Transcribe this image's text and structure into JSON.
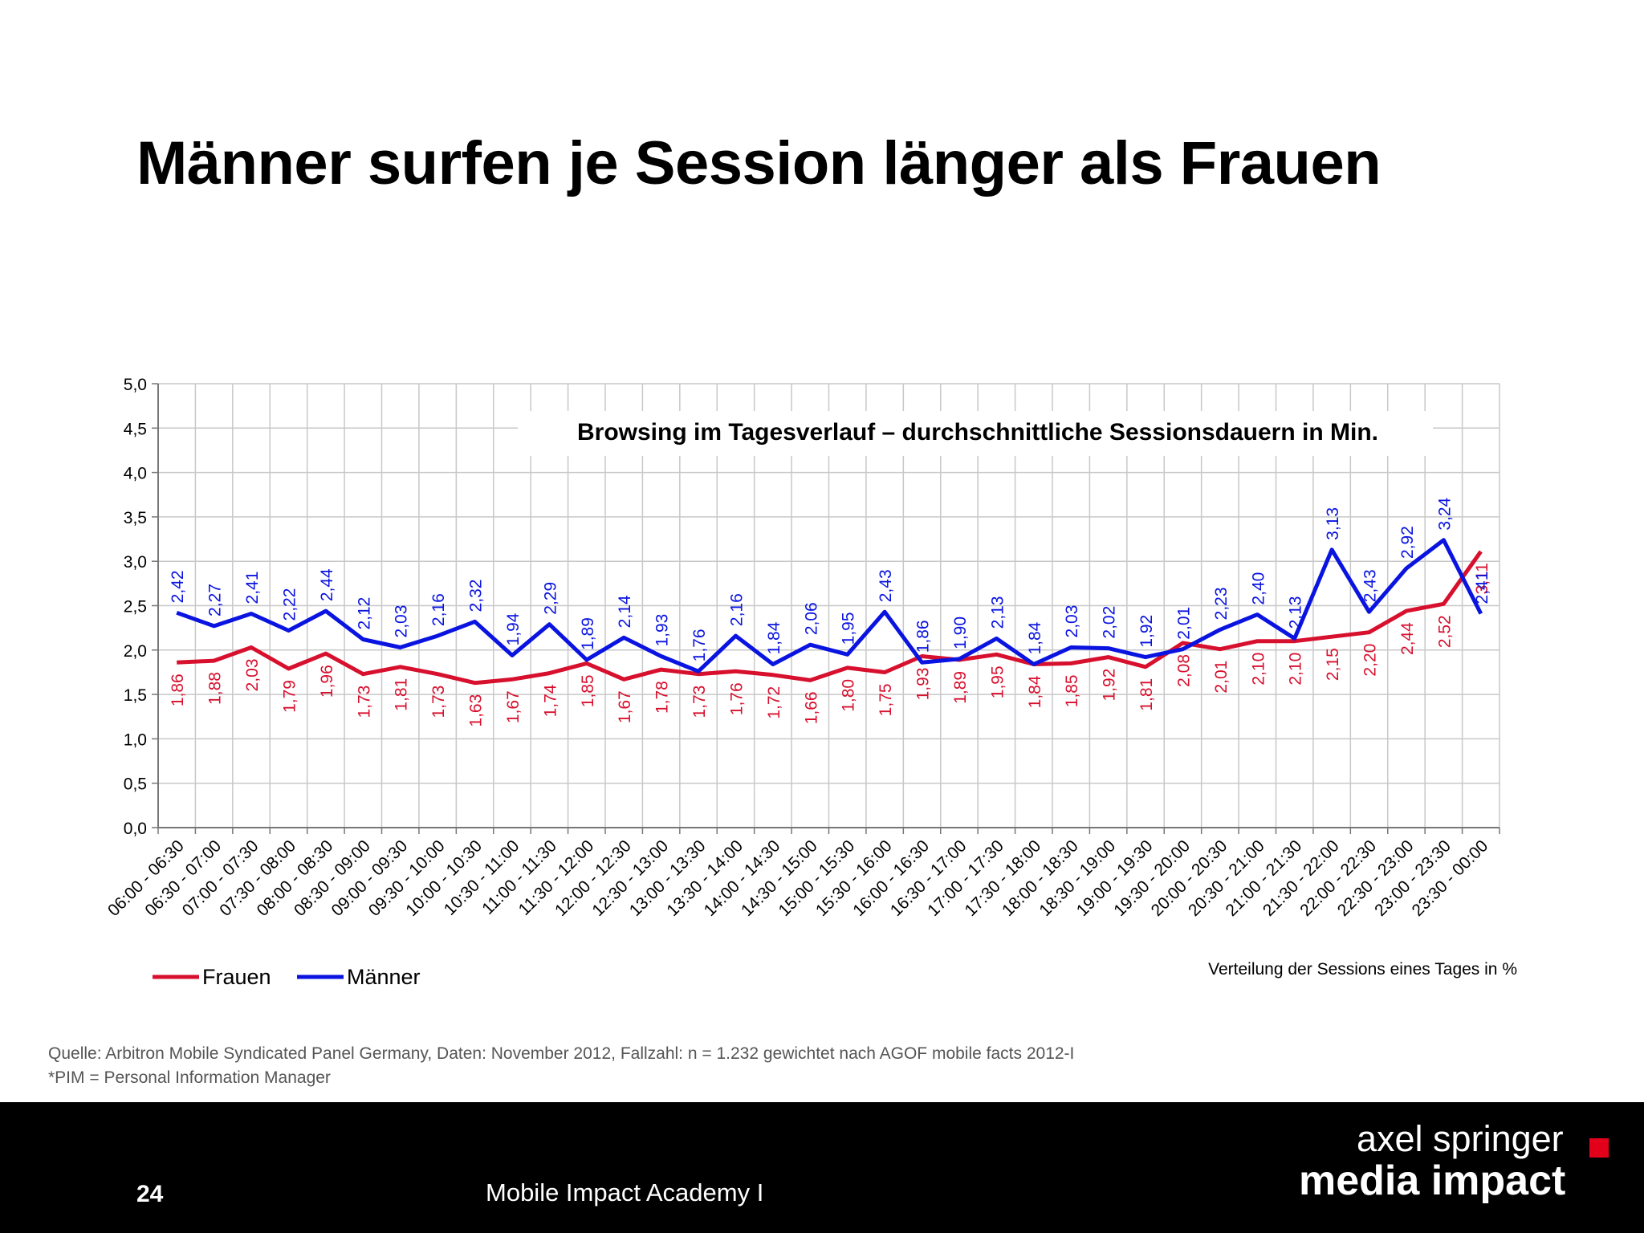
{
  "slide": {
    "title": "Männer surfen je Session länger als Frauen",
    "source_line1": "Quelle: Arbitron Mobile Syndicated Panel Germany, Daten: November 2012, Fallzahl: n = 1.232 gewichtet nach AGOF mobile facts 2012-I",
    "source_line2": "*PIM = Personal Information Manager",
    "page_number": "24",
    "footer_text": "Mobile Impact Academy I",
    "brand_line1": "axel springer",
    "brand_line2": "media impact"
  },
  "chart_data": {
    "type": "line",
    "title": "Browsing im Tagesverlauf – durchschnittliche Sessionsdauern in Min.",
    "note": "Verteilung der Sessions eines Tages  in %",
    "categories": [
      "06:00 - 06:30",
      "06:30 - 07:00",
      "07:00 - 07:30",
      "07:30 - 08:00",
      "08:00 - 08:30",
      "08:30 - 09:00",
      "09:00 - 09:30",
      "09:30 - 10:00",
      "10:00 - 10:30",
      "10:30 - 11:00",
      "11:00 - 11:30",
      "11:30 - 12:00",
      "12:00 - 12:30",
      "12:30 - 13:00",
      "13:00 - 13:30",
      "13:30 - 14:00",
      "14:00 - 14:30",
      "14:30 - 15:00",
      "15:00 - 15:30",
      "15:30 - 16:00",
      "16:00 - 16:30",
      "16:30 - 17:00",
      "17:00 - 17:30",
      "17:30 - 18:00",
      "18:00 - 18:30",
      "18:30 - 19:00",
      "19:00 - 19:30",
      "19:30 - 20:00",
      "20:00 - 20:30",
      "20:30 - 21:00",
      "21:00 - 21:30",
      "21:30 - 22:00",
      "22:00 - 22:30",
      "22:30 - 23:00",
      "23:00 - 23:30",
      "23:30 - 00:00"
    ],
    "series": [
      {
        "name": "Frauen",
        "color": "#d7102e",
        "values": [
          1.86,
          1.88,
          2.03,
          1.79,
          1.96,
          1.73,
          1.81,
          1.73,
          1.63,
          1.67,
          1.74,
          1.85,
          1.67,
          1.78,
          1.73,
          1.76,
          1.72,
          1.66,
          1.8,
          1.75,
          1.93,
          1.89,
          1.95,
          1.84,
          1.85,
          1.92,
          1.81,
          2.08,
          2.01,
          2.1,
          2.1,
          2.15,
          2.2,
          2.44,
          2.52,
          3.11
        ],
        "labels": [
          "1,86",
          "1,88",
          "2,03",
          "1,79",
          "1,96",
          "1,73",
          "1,81",
          "1,73",
          "1,63",
          "1,67",
          "1,74",
          "1,85",
          "1,67",
          "1,78",
          "1,73",
          "1,76",
          "1,72",
          "1,66",
          "1,80",
          "1,75",
          "1,93",
          "1,89",
          "1,95",
          "1,84",
          "1,85",
          "1,92",
          "1,81",
          "2,08",
          "2,01",
          "2,10",
          "2,10",
          "2,15",
          "2,20",
          "2,44",
          "2,52",
          "3,11"
        ]
      },
      {
        "name": "Männer",
        "color": "#0a14e0",
        "values": [
          2.42,
          2.27,
          2.41,
          2.22,
          2.44,
          2.12,
          2.03,
          2.16,
          2.32,
          1.94,
          2.29,
          1.89,
          2.14,
          1.93,
          1.76,
          2.16,
          1.84,
          2.06,
          1.95,
          2.43,
          1.86,
          1.9,
          2.13,
          1.84,
          2.03,
          2.02,
          1.92,
          2.01,
          2.23,
          2.4,
          2.13,
          3.13,
          2.43,
          2.92,
          3.24,
          2.41
        ],
        "labels": [
          "2,42",
          "2,27",
          "2,41",
          "2,22",
          "2,44",
          "2,12",
          "2,03",
          "2,16",
          "2,32",
          "1,94",
          "2,29",
          "1,89",
          "2,14",
          "1,93",
          "1,76",
          "2,16",
          "1,84",
          "2,06",
          "1,95",
          "2,43",
          "1,86",
          "1,90",
          "2,13",
          "1,84",
          "2,03",
          "2,02",
          "1,92",
          "2,01",
          "2,23",
          "2,40",
          "2,13",
          "3,13",
          "2,43",
          "2,92",
          "3,24",
          "2,41"
        ]
      }
    ],
    "ylim": [
      0,
      5
    ],
    "yticks": [
      "0,0",
      "0,5",
      "1,0",
      "1,5",
      "2,0",
      "2,5",
      "3,0",
      "3,5",
      "4,0",
      "4,5",
      "5,0"
    ],
    "grid": true,
    "legend_position": "bottom-left"
  }
}
